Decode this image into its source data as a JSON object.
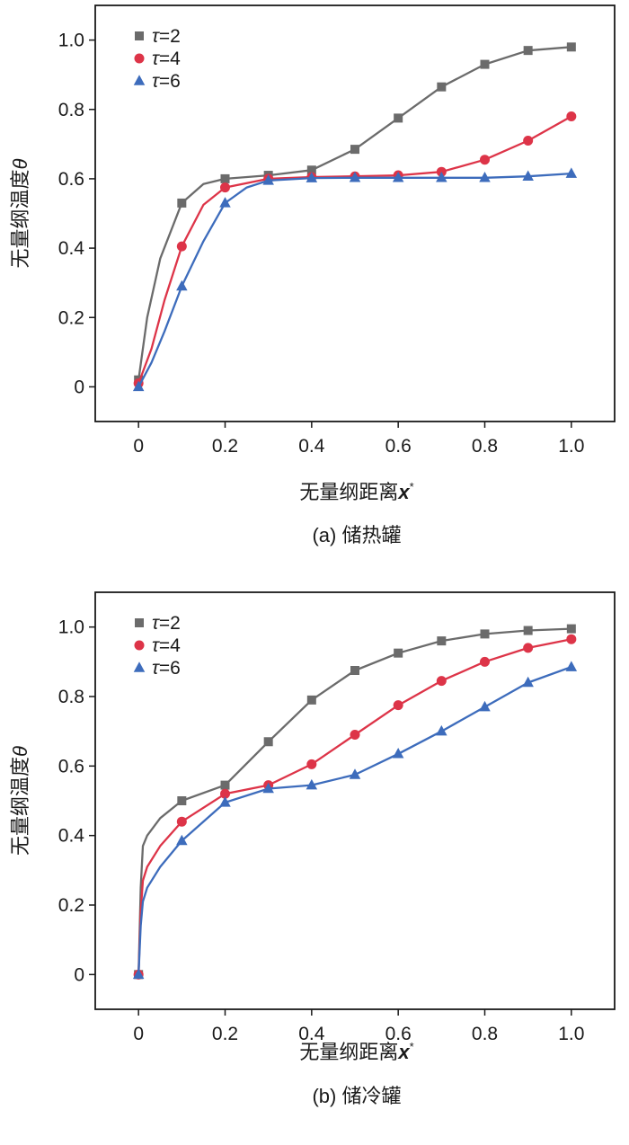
{
  "colors": {
    "series_1": "#6b6b6b",
    "series_2": "#dd3448",
    "series_3": "#3d6cbc",
    "axis": "#1a1a1a"
  },
  "chart_data": [
    {
      "type": "line",
      "caption": "(a) 储热罐",
      "xlabel": "无量纲距离",
      "xlabel_symbol": "x",
      "xlabel_sup": "*",
      "ylabel": "无量纲温度",
      "ylabel_symbol": "θ",
      "xlim": [
        -0.1,
        1.1
      ],
      "ylim": [
        -0.1,
        1.1
      ],
      "xticks": [
        0,
        0.2,
        0.4,
        0.6,
        0.8,
        1.0
      ],
      "xtick_labels": [
        "0",
        "0.2",
        "0.4",
        "0.6",
        "0.8",
        "1.0"
      ],
      "yticks": [
        0,
        0.2,
        0.4,
        0.6,
        0.8,
        1.0
      ],
      "ytick_labels": [
        "0",
        "0.2",
        "0.4",
        "0.6",
        "0.8",
        "1.0"
      ],
      "legend_position": "top-left",
      "series": [
        {
          "symbol": "τ",
          "value_label": "=2",
          "marker": "square",
          "color": "#6b6b6b",
          "x": [
            0,
            0.02,
            0.05,
            0.1,
            0.15,
            0.2,
            0.3,
            0.4,
            0.5,
            0.6,
            0.7,
            0.8,
            0.9,
            1.0
          ],
          "y": [
            0.02,
            0.2,
            0.37,
            0.53,
            0.585,
            0.6,
            0.61,
            0.625,
            0.685,
            0.775,
            0.865,
            0.93,
            0.97,
            0.98
          ]
        },
        {
          "symbol": "τ",
          "value_label": "=4",
          "marker": "circle",
          "color": "#dd3448",
          "x": [
            0,
            0.03,
            0.06,
            0.1,
            0.15,
            0.2,
            0.3,
            0.4,
            0.5,
            0.6,
            0.7,
            0.8,
            0.9,
            1.0
          ],
          "y": [
            0.01,
            0.11,
            0.25,
            0.405,
            0.525,
            0.575,
            0.6,
            0.605,
            0.607,
            0.61,
            0.62,
            0.655,
            0.71,
            0.78
          ]
        },
        {
          "symbol": "τ",
          "value_label": "=6",
          "marker": "triangle",
          "color": "#3d6cbc",
          "x": [
            0,
            0.03,
            0.06,
            0.1,
            0.15,
            0.2,
            0.25,
            0.3,
            0.4,
            0.5,
            0.6,
            0.7,
            0.8,
            0.9,
            1.0
          ],
          "y": [
            0,
            0.07,
            0.16,
            0.29,
            0.42,
            0.53,
            0.575,
            0.595,
            0.602,
            0.603,
            0.603,
            0.603,
            0.603,
            0.607,
            0.615
          ]
        }
      ]
    },
    {
      "type": "line",
      "caption": "(b) 储冷罐",
      "xlabel": "无量纲距离",
      "xlabel_symbol": "x",
      "xlabel_sup": "*",
      "ylabel": "无量纲温度",
      "ylabel_symbol": "θ",
      "xlim": [
        -0.1,
        1.1
      ],
      "ylim": [
        -0.1,
        1.1
      ],
      "xticks": [
        0,
        0.2,
        0.4,
        0.6,
        0.8,
        1.0
      ],
      "xtick_labels": [
        "0",
        "0.2",
        "0.4",
        "0.6",
        "0.8",
        "1.0"
      ],
      "yticks": [
        0,
        0.2,
        0.4,
        0.6,
        0.8,
        1.0
      ],
      "ytick_labels": [
        "0",
        "0.2",
        "0.4",
        "0.6",
        "0.8",
        "1.0"
      ],
      "legend_position": "top-left",
      "series": [
        {
          "symbol": "τ",
          "value_label": "=2",
          "marker": "square",
          "color": "#6b6b6b",
          "x": [
            0,
            0.005,
            0.01,
            0.02,
            0.05,
            0.1,
            0.2,
            0.3,
            0.4,
            0.5,
            0.6,
            0.7,
            0.8,
            0.9,
            1.0
          ],
          "y": [
            0,
            0.25,
            0.37,
            0.4,
            0.45,
            0.5,
            0.545,
            0.67,
            0.79,
            0.875,
            0.925,
            0.96,
            0.98,
            0.99,
            0.995
          ]
        },
        {
          "symbol": "τ",
          "value_label": "=4",
          "marker": "circle",
          "color": "#dd3448",
          "x": [
            0,
            0.005,
            0.01,
            0.02,
            0.05,
            0.1,
            0.2,
            0.3,
            0.4,
            0.5,
            0.6,
            0.7,
            0.8,
            0.9,
            1.0
          ],
          "y": [
            0,
            0.18,
            0.27,
            0.31,
            0.37,
            0.44,
            0.52,
            0.545,
            0.605,
            0.69,
            0.775,
            0.845,
            0.9,
            0.94,
            0.965
          ]
        },
        {
          "symbol": "τ",
          "value_label": "=6",
          "marker": "triangle",
          "color": "#3d6cbc",
          "x": [
            0,
            0.005,
            0.01,
            0.02,
            0.05,
            0.1,
            0.2,
            0.3,
            0.4,
            0.5,
            0.6,
            0.7,
            0.8,
            0.9,
            1.0
          ],
          "y": [
            0,
            0.14,
            0.21,
            0.25,
            0.31,
            0.385,
            0.495,
            0.535,
            0.545,
            0.575,
            0.635,
            0.7,
            0.77,
            0.84,
            0.885
          ]
        }
      ]
    }
  ]
}
